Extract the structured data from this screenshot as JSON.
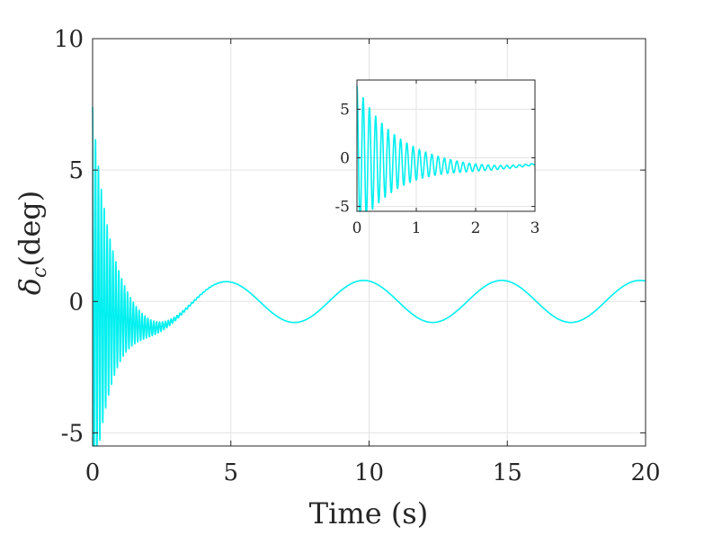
{
  "chart_data": [
    {
      "type": "line",
      "role": "main",
      "xlabel": "Time (s)",
      "ylabel": "δc(deg)",
      "ylabel_parts": {
        "base": "δ",
        "sub": "c",
        "rest": "(deg)"
      },
      "xlim": [
        0,
        20
      ],
      "ylim": [
        -5.5,
        10
      ],
      "xticks": [
        0,
        5,
        10,
        15,
        20
      ],
      "yticks": [
        -5,
        0,
        5,
        10
      ],
      "xtick_labels": [
        "0",
        "5",
        "10",
        "15",
        "20"
      ],
      "ytick_labels": [
        "-5",
        "0",
        "5",
        "10"
      ],
      "grid": true,
      "line_color": "#00f0f0",
      "signal": {
        "osc_amplitude": 7.4,
        "osc_decay_rate": 1.5,
        "osc_frequency_hz": 9.5,
        "offset": -0.9,
        "offset_decay_rate": 1.2,
        "sine_amplitude": 0.8,
        "sine_period": 5,
        "sine_peak_time": 4.8,
        "sine_ramp_time": 1.2
      }
    },
    {
      "type": "line",
      "role": "inset",
      "xlim": [
        0,
        3
      ],
      "ylim": [
        -5.5,
        8
      ],
      "xticks": [
        0,
        1,
        2,
        3
      ],
      "yticks": [
        -5,
        0,
        5
      ],
      "xtick_labels": [
        "0",
        "1",
        "2",
        "3"
      ],
      "ytick_labels": [
        "-5",
        "0",
        "5"
      ],
      "grid": true,
      "line_color": "#00f0f0"
    }
  ]
}
